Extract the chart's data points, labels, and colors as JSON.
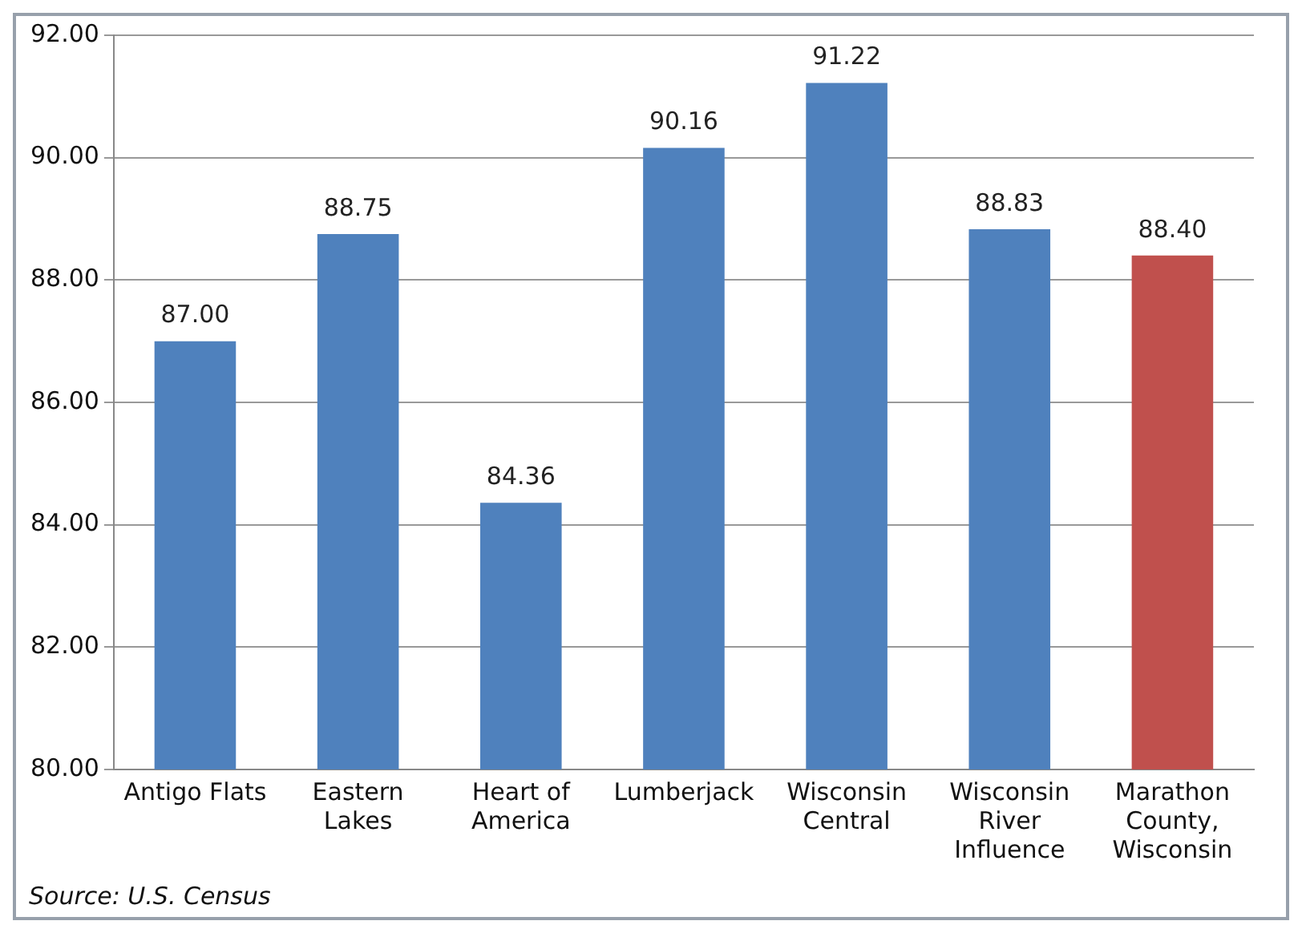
{
  "chart_data": {
    "type": "bar",
    "categories": [
      "Antigo Flats",
      "Eastern Lakes",
      "Heart of America",
      "Lumberjack",
      "Wisconsin Central",
      "Wisconsin River Influence",
      "Marathon County, Wisconsin"
    ],
    "values": [
      87.0,
      88.75,
      84.36,
      90.16,
      91.22,
      88.83,
      88.4
    ],
    "colors": [
      "#4f81bd",
      "#4f81bd",
      "#4f81bd",
      "#4f81bd",
      "#4f81bd",
      "#4f81bd",
      "#c0504d"
    ],
    "value_labels": [
      "87.00",
      "88.75",
      "84.36",
      "90.16",
      "91.22",
      "88.83",
      "88.40"
    ],
    "ylim": [
      80,
      92
    ],
    "yticks": [
      {
        "value": 80,
        "label": "80.00"
      },
      {
        "value": 82,
        "label": "82.00"
      },
      {
        "value": 84,
        "label": "84.00"
      },
      {
        "value": 86,
        "label": "86.00"
      },
      {
        "value": 88,
        "label": "88.00"
      },
      {
        "value": 90,
        "label": "90.00"
      },
      {
        "value": 92,
        "label": "92.00"
      }
    ],
    "grid": "y",
    "legend": false,
    "annotations": [
      "Source: U.S. Census"
    ]
  }
}
